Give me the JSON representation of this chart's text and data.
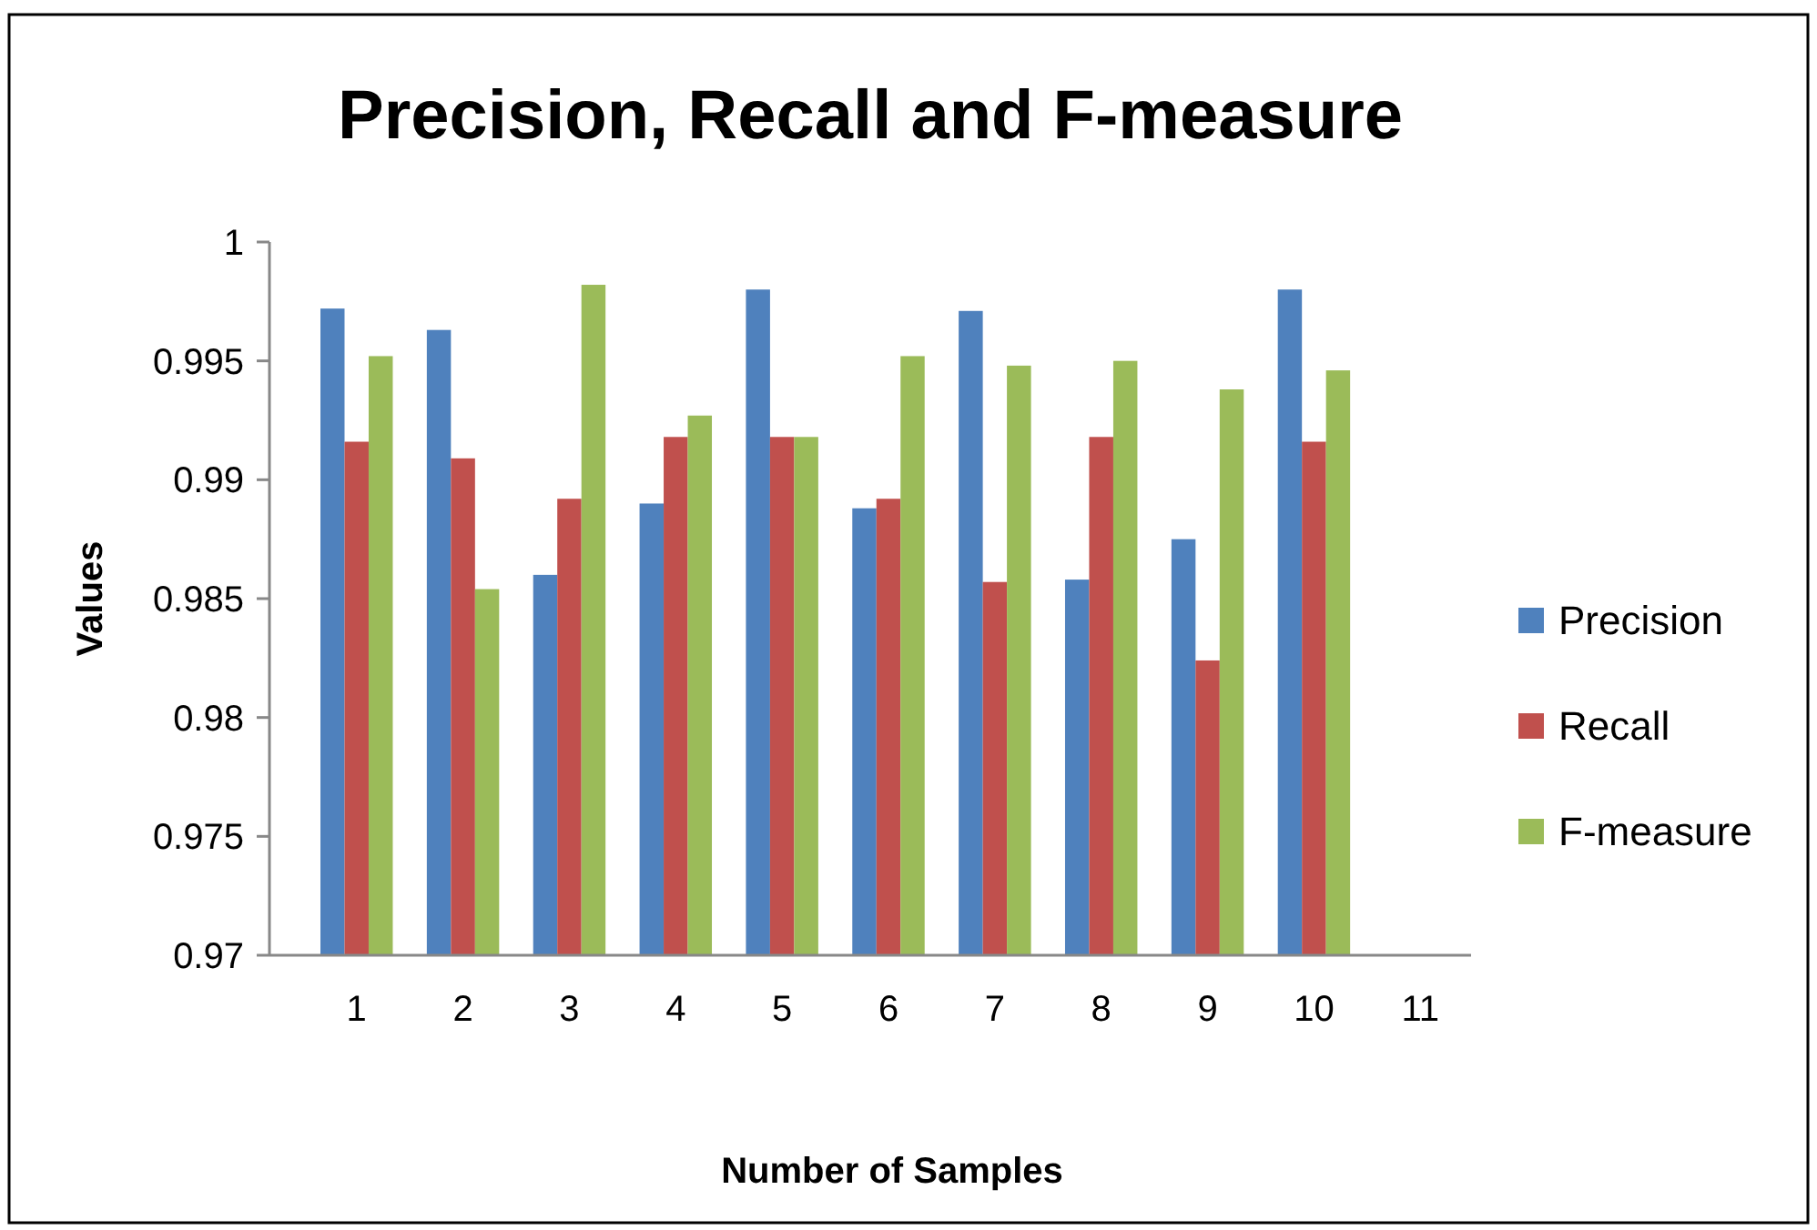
{
  "chart_data": {
    "type": "bar",
    "title": "Precision, Recall and F-measure",
    "xlabel": "Number of Samples",
    "ylabel": "Values",
    "categories": [
      "1",
      "2",
      "3",
      "4",
      "5",
      "6",
      "7",
      "8",
      "9",
      "10",
      "11"
    ],
    "series": [
      {
        "name": "Precision",
        "color": "#4f81bd",
        "values": [
          0.9972,
          0.9963,
          0.986,
          0.989,
          0.998,
          0.9888,
          0.9971,
          0.9858,
          0.9875,
          0.998,
          null
        ]
      },
      {
        "name": "Recall",
        "color": "#c0504d",
        "values": [
          0.9916,
          0.9909,
          0.9892,
          0.9918,
          0.9918,
          0.9892,
          0.9857,
          0.9918,
          0.9824,
          0.9916,
          null
        ]
      },
      {
        "name": "F-measure",
        "color": "#9bbb59",
        "values": [
          0.9952,
          0.9854,
          0.9982,
          0.9927,
          0.9918,
          0.9952,
          0.9948,
          0.995,
          0.9938,
          0.9946,
          null
        ]
      }
    ],
    "ylim": [
      0.97,
      1
    ],
    "yticks": [
      0.97,
      0.975,
      0.98,
      0.985,
      0.99,
      0.995,
      1
    ],
    "grid": false,
    "legend": "right"
  }
}
